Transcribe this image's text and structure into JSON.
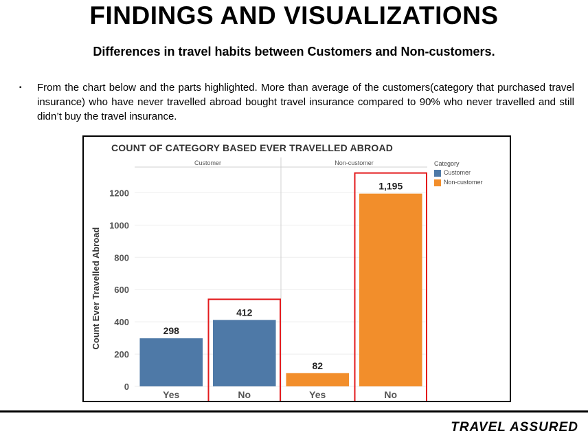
{
  "slide": {
    "title": "FINDINGS AND VISUALIZATIONS",
    "subtitle": "Differences in travel habits between Customers and Non-customers.",
    "bullet_marker": "▪",
    "bullet_text": "From the chart below and the parts highlighted. More than average of the customers(category that purchased travel insurance) who  have never travelled abroad bought travel insurance compared to 90%  who never travelled and still didn’t buy the travel insurance.",
    "brand": "TRAVEL ASSURED"
  },
  "chart_data": {
    "type": "bar",
    "title": "COUNT OF CATEGORY BASED EVER TRAVELLED ABROAD",
    "xlabel": "",
    "ylabel": "Count Ever Travelled Abroad",
    "ylim": [
      0,
      1300
    ],
    "yticks": [
      0,
      200,
      400,
      600,
      800,
      1000,
      1200
    ],
    "grid": true,
    "legend_position": "right",
    "legend_title": "Category",
    "panels": [
      "Customer",
      "Non-customer"
    ],
    "bars": [
      {
        "panel": "Customer",
        "category": "Yes",
        "value": 298,
        "label": "298",
        "highlighted": false
      },
      {
        "panel": "Customer",
        "category": "No",
        "value": 412,
        "label": "412",
        "highlighted": true
      },
      {
        "panel": "Non-customer",
        "category": "Yes",
        "value": 82,
        "label": "82",
        "highlighted": false
      },
      {
        "panel": "Non-customer",
        "category": "No",
        "value": 1195,
        "label": "1,195",
        "highlighted": true
      }
    ],
    "series": [
      {
        "name": "Customer",
        "color": "#4e79a7"
      },
      {
        "name": "Non-customer",
        "color": "#f28e2b"
      }
    ],
    "highlight_color": "#e31a1c"
  }
}
